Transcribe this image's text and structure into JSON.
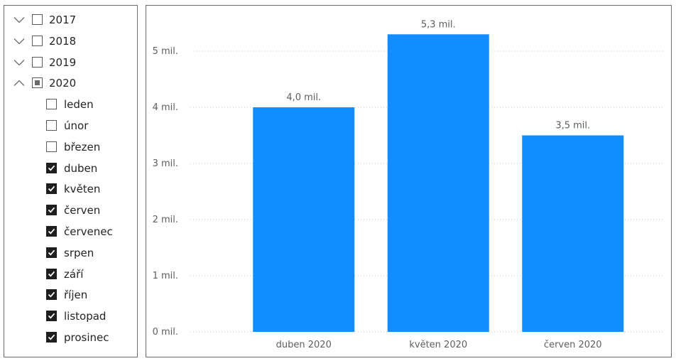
{
  "slicer": {
    "years": [
      {
        "label": "2017",
        "state": "unchecked",
        "expanded": false
      },
      {
        "label": "2018",
        "state": "unchecked",
        "expanded": false
      },
      {
        "label": "2019",
        "state": "unchecked",
        "expanded": false
      },
      {
        "label": "2020",
        "state": "partial",
        "expanded": true
      }
    ],
    "months": [
      {
        "label": "leden",
        "checked": false
      },
      {
        "label": "únor",
        "checked": false
      },
      {
        "label": "březen",
        "checked": false
      },
      {
        "label": "duben",
        "checked": true
      },
      {
        "label": "květen",
        "checked": true
      },
      {
        "label": "červen",
        "checked": true
      },
      {
        "label": "červenec",
        "checked": true
      },
      {
        "label": "srpen",
        "checked": true
      },
      {
        "label": "září",
        "checked": true
      },
      {
        "label": "říjen",
        "checked": true
      },
      {
        "label": "listopad",
        "checked": true
      },
      {
        "label": "prosinec",
        "checked": true
      }
    ]
  },
  "chart_data": {
    "type": "bar",
    "categories": [
      "duben 2020",
      "květen 2020",
      "červen 2020"
    ],
    "values": [
      4000000,
      5300000,
      3500000
    ],
    "data_labels": [
      "4,0 mil.",
      "5,3 mil.",
      "3,5 mil."
    ],
    "y_ticks": [
      0,
      1000000,
      2000000,
      3000000,
      4000000,
      5000000
    ],
    "y_tick_labels": [
      "0 mil.",
      "1 mil.",
      "2 mil.",
      "3 mil.",
      "4 mil.",
      "5 mil."
    ],
    "ylim": [
      0,
      5500000
    ],
    "grid": true,
    "bar_color": "#118DFF"
  }
}
